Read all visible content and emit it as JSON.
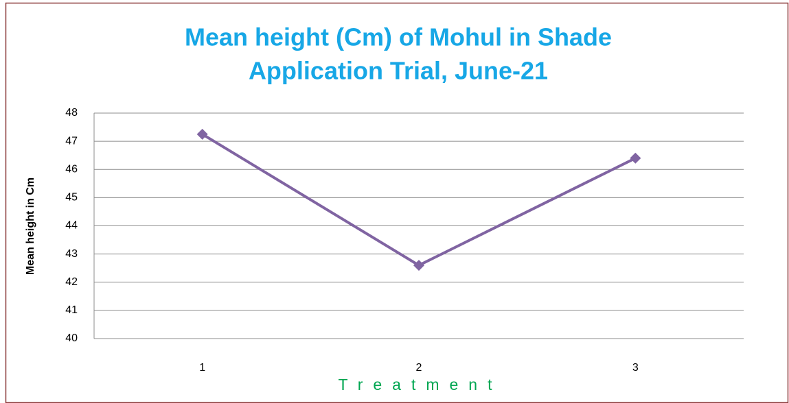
{
  "chart_data": {
    "type": "line",
    "title": [
      "Mean height (Cm) of Mohul in Shade",
      "Application Trial, June-21"
    ],
    "x_label": "Treatment",
    "y_label": "Mean height in Cm",
    "categories": [
      "1",
      "2",
      "3"
    ],
    "series": [
      {
        "name": "Mean height",
        "color": "#8064a2",
        "values": [
          47.25,
          42.6,
          46.4
        ]
      }
    ],
    "ylim": [
      40,
      48
    ],
    "yticks": [
      40,
      41,
      42,
      43,
      44,
      45,
      46,
      47,
      48
    ],
    "grid": true,
    "legend": false
  }
}
